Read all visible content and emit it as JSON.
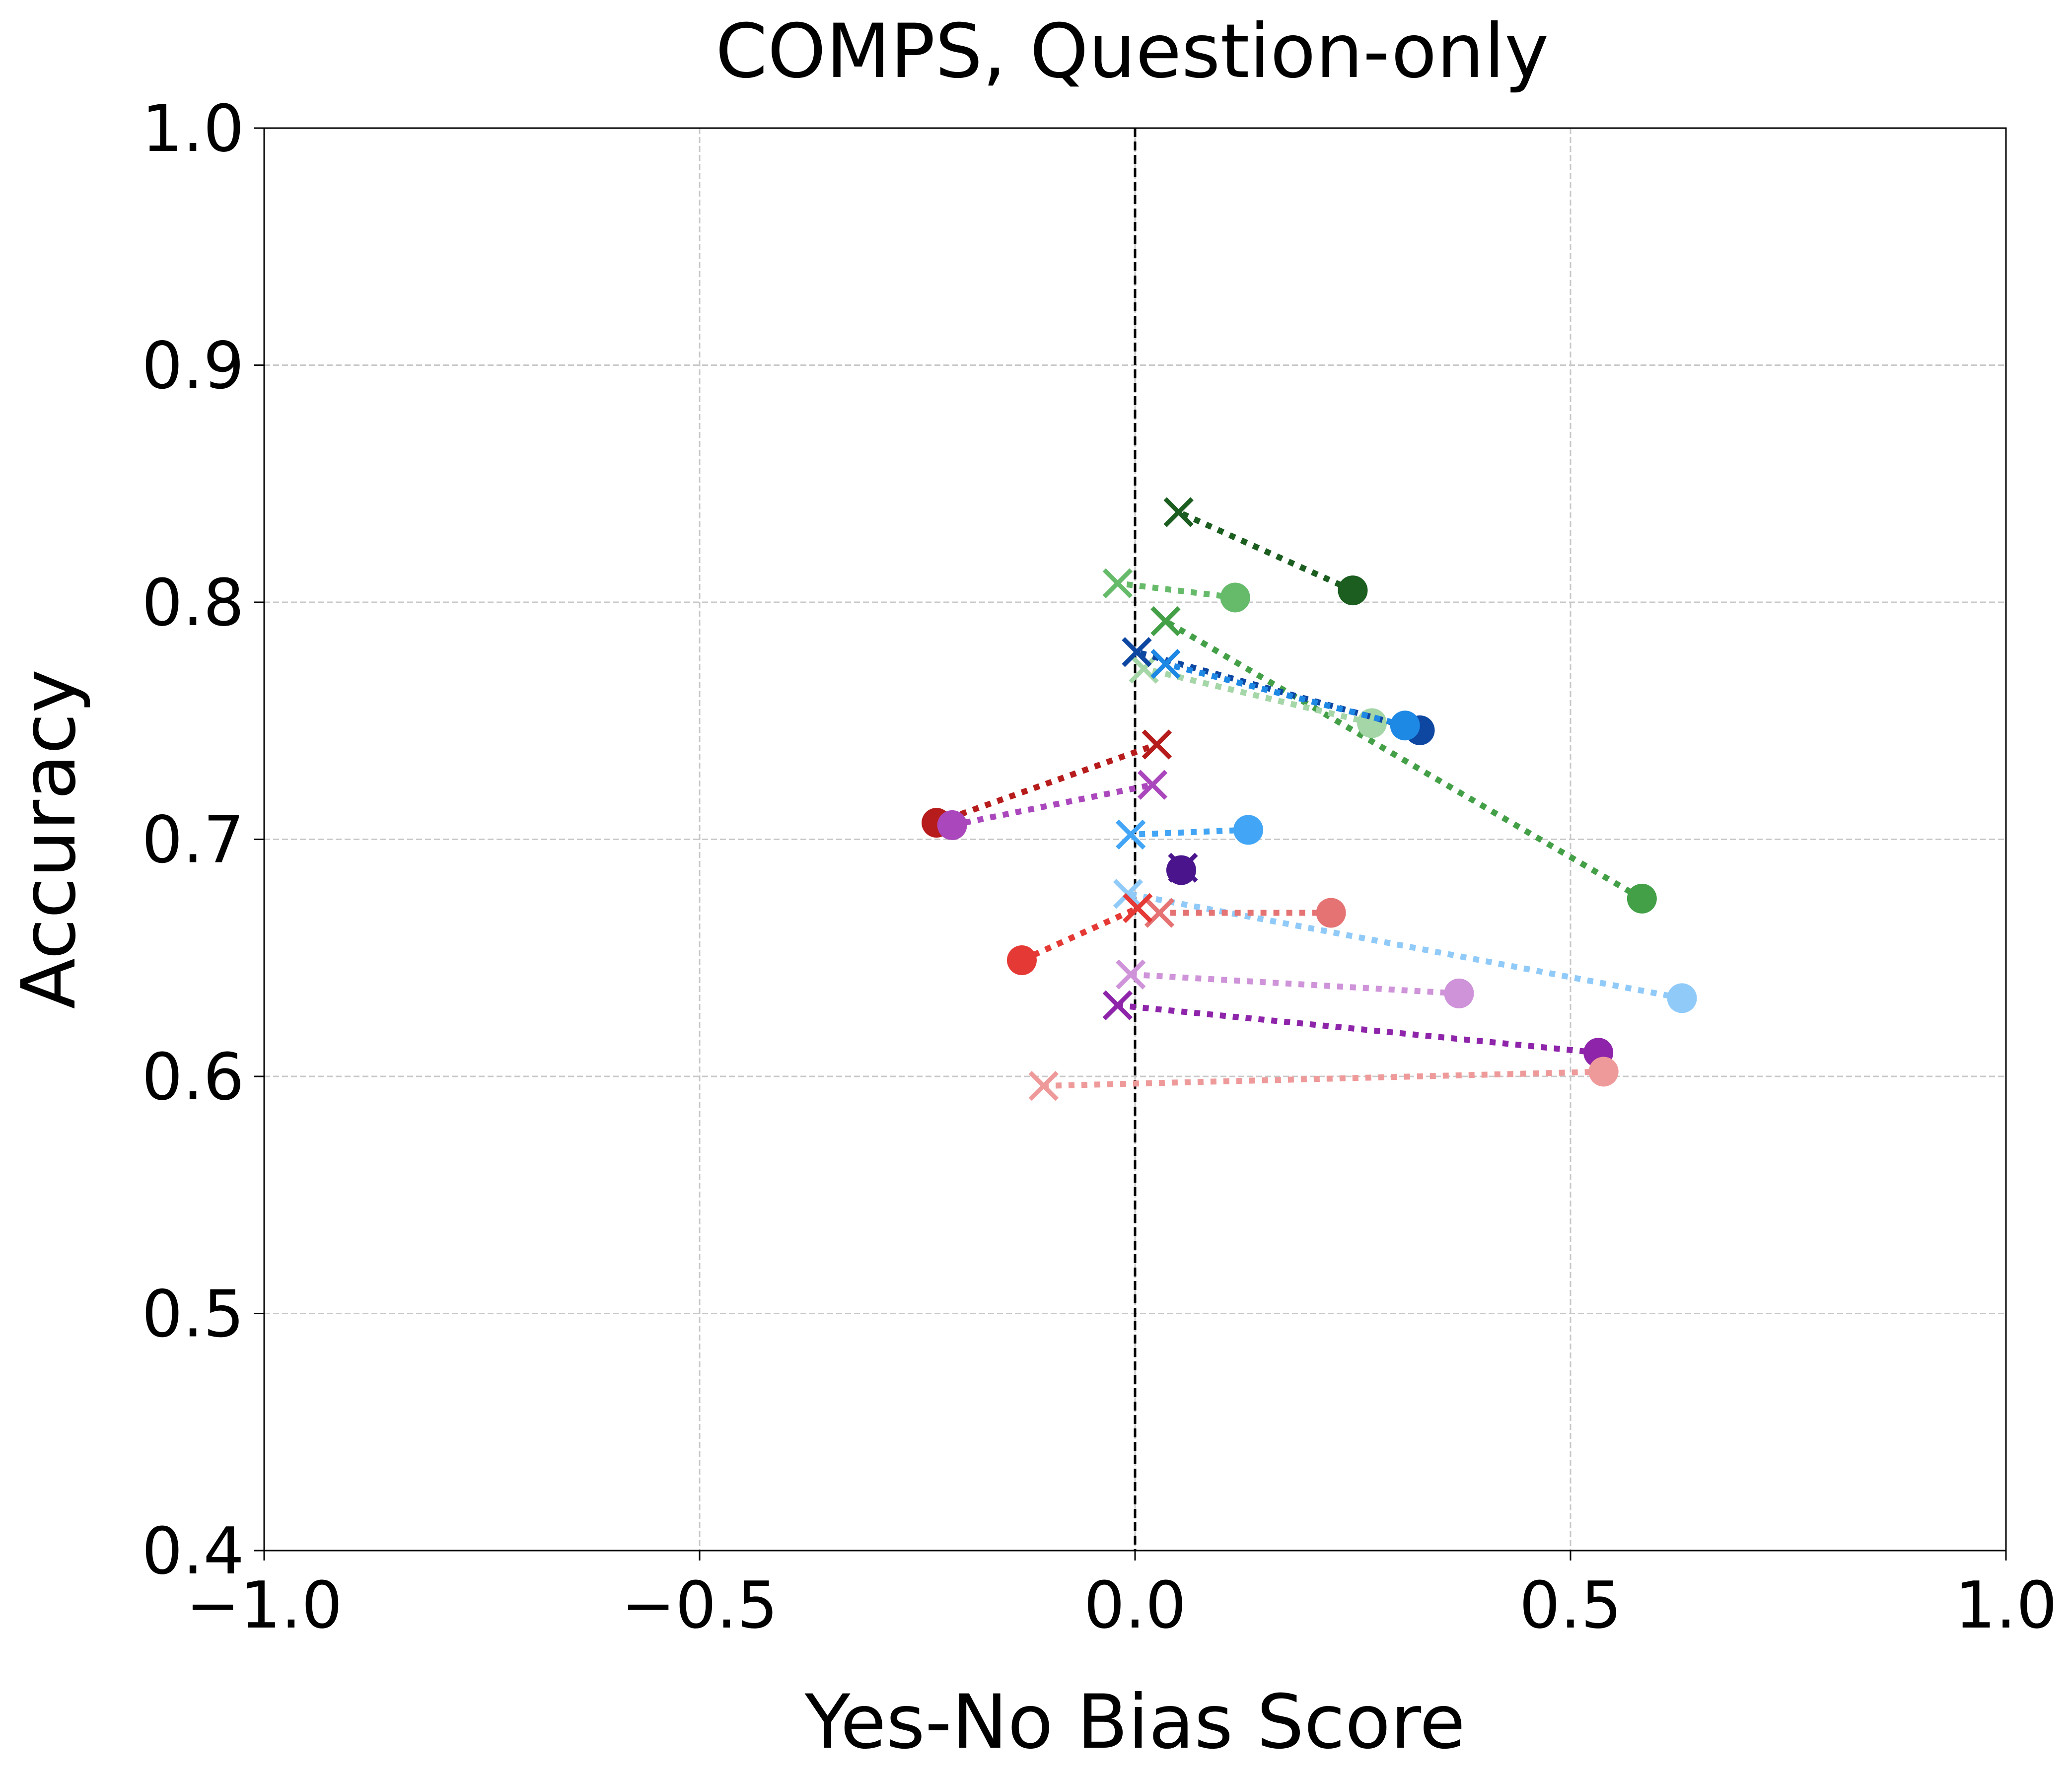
{
  "chart_data": {
    "type": "scatter",
    "title": "COMPS, Question-only",
    "xlabel": "Yes-No Bias Score",
    "ylabel": "Accuracy",
    "xlim": [
      -1.0,
      1.0
    ],
    "ylim": [
      0.4,
      1.0
    ],
    "xticks": [
      -1.0,
      -0.5,
      0.0,
      0.5,
      1.0
    ],
    "xtick_labels": [
      "−1.0",
      "−0.5",
      "0.0",
      "0.5",
      "1.0"
    ],
    "yticks": [
      0.4,
      0.5,
      0.6,
      0.7,
      0.8,
      0.9,
      1.0
    ],
    "ytick_labels": [
      "0.4",
      "0.5",
      "0.6",
      "0.7",
      "0.8",
      "0.9",
      "1.0"
    ],
    "grid": true,
    "reference_line": {
      "x": 0.0,
      "style": "dashed",
      "color": "#000000"
    },
    "markers": {
      "start": "circle",
      "end": "x",
      "connector": "dotted"
    },
    "pairs": [
      {
        "color": "#1b5e20",
        "circle": [
          0.25,
          0.805
        ],
        "cross": [
          0.05,
          0.838
        ]
      },
      {
        "color": "#66bb6a",
        "circle": [
          0.115,
          0.802
        ],
        "cross": [
          -0.02,
          0.808
        ]
      },
      {
        "color": "#43a047",
        "circle": [
          0.582,
          0.675
        ],
        "cross": [
          0.035,
          0.792
        ]
      },
      {
        "color": "#a5d6a7",
        "circle": [
          0.272,
          0.749
        ],
        "cross": [
          0.01,
          0.772
        ]
      },
      {
        "color": "#0d47a1",
        "circle": [
          0.327,
          0.746
        ],
        "cross": [
          0.002,
          0.779
        ]
      },
      {
        "color": "#1e88e5",
        "circle": [
          0.31,
          0.748
        ],
        "cross": [
          0.035,
          0.774
        ]
      },
      {
        "color": "#b71c1c",
        "circle": [
          -0.228,
          0.707
        ],
        "cross": [
          0.025,
          0.74
        ]
      },
      {
        "color": "#ab47bc",
        "circle": [
          -0.21,
          0.706
        ],
        "cross": [
          0.02,
          0.723
        ]
      },
      {
        "color": "#42a5f5",
        "circle": [
          0.13,
          0.704
        ],
        "cross": [
          -0.005,
          0.702
        ]
      },
      {
        "color": "#4a148c",
        "circle": [
          0.053,
          0.687
        ],
        "cross": [
          0.055,
          0.688
        ]
      },
      {
        "color": "#90caf9",
        "circle": [
          0.628,
          0.633
        ],
        "cross": [
          -0.008,
          0.677
        ]
      },
      {
        "color": "#e57373",
        "circle": [
          0.225,
          0.669
        ],
        "cross": [
          0.028,
          0.669
        ]
      },
      {
        "color": "#e53935",
        "circle": [
          -0.13,
          0.649
        ],
        "cross": [
          0.003,
          0.671
        ]
      },
      {
        "color": "#ce93d8",
        "circle": [
          0.372,
          0.635
        ],
        "cross": [
          -0.005,
          0.643
        ]
      },
      {
        "color": "#8e24aa",
        "circle": [
          0.532,
          0.61
        ],
        "cross": [
          -0.02,
          0.63
        ]
      },
      {
        "color": "#ef9a9a",
        "circle": [
          0.538,
          0.602
        ],
        "cross": [
          -0.105,
          0.596
        ]
      }
    ]
  }
}
